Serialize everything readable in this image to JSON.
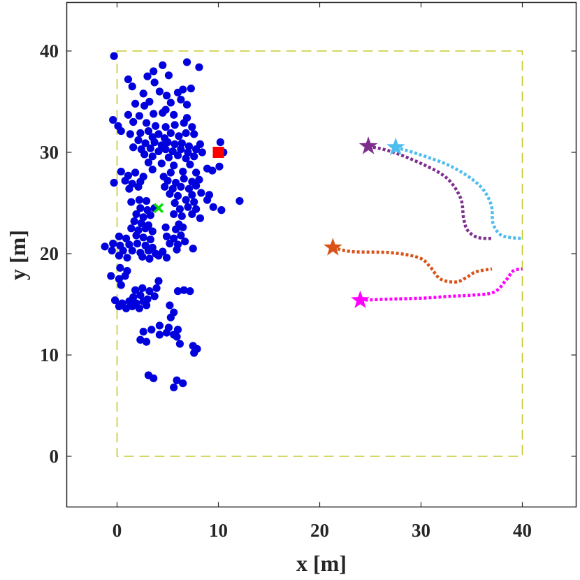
{
  "chart_data": {
    "type": "scatter",
    "xlabel": "x [m]",
    "ylabel": "y [m]",
    "xlim": [
      -5,
      45
    ],
    "ylim": [
      -5,
      45
    ],
    "xticks": [
      "0",
      "10",
      "20",
      "30",
      "40"
    ],
    "yticks": [
      "0",
      "10",
      "20",
      "30",
      "40"
    ],
    "grid": false,
    "boundary": {
      "x": [
        0,
        40
      ],
      "y": [
        0,
        40
      ],
      "color": "#c8c830",
      "style": "dashed"
    },
    "scatter_color": "#0000dd",
    "points": [
      [
        -0.3,
        39.5
      ],
      [
        3.6,
        38.0
      ],
      [
        4.5,
        38.6
      ],
      [
        6.9,
        38.9
      ],
      [
        8.1,
        38.4
      ],
      [
        3.0,
        37.5
      ],
      [
        5.1,
        37.6
      ],
      [
        1.1,
        37.2
      ],
      [
        3.7,
        36.9
      ],
      [
        1.5,
        36.5
      ],
      [
        4.2,
        36.0
      ],
      [
        2.6,
        35.8
      ],
      [
        6.5,
        36.2
      ],
      [
        7.3,
        36.3
      ],
      [
        4.9,
        35.6
      ],
      [
        6.0,
        35.9
      ],
      [
        1.8,
        34.8
      ],
      [
        2.7,
        34.6
      ],
      [
        3.2,
        35.0
      ],
      [
        5.3,
        34.9
      ],
      [
        6.3,
        35.2
      ],
      [
        4.8,
        34.2
      ],
      [
        6.9,
        34.7
      ],
      [
        1.1,
        33.7
      ],
      [
        2.2,
        33.6
      ],
      [
        3.6,
        33.8
      ],
      [
        4.5,
        33.9
      ],
      [
        5.6,
        33.7
      ],
      [
        6.9,
        33.4
      ],
      [
        -0.4,
        33.2
      ],
      [
        0.1,
        32.6
      ],
      [
        1.6,
        33.0
      ],
      [
        2.9,
        32.9
      ],
      [
        3.8,
        32.6
      ],
      [
        4.8,
        32.5
      ],
      [
        5.7,
        32.7
      ],
      [
        6.6,
        32.9
      ],
      [
        7.4,
        32.5
      ],
      [
        0.4,
        32.1
      ],
      [
        1.3,
        31.8
      ],
      [
        2.3,
        31.9
      ],
      [
        3.1,
        32.1
      ],
      [
        3.5,
        31.5
      ],
      [
        4.1,
        31.8
      ],
      [
        4.7,
        31.4
      ],
      [
        5.3,
        31.9
      ],
      [
        6.1,
        31.6
      ],
      [
        6.8,
        31.9
      ],
      [
        7.6,
        31.8
      ],
      [
        2.1,
        31.2
      ],
      [
        2.8,
        30.9
      ],
      [
        3.7,
        31.0
      ],
      [
        4.4,
        30.7
      ],
      [
        5.0,
        31.0
      ],
      [
        5.7,
        30.8
      ],
      [
        6.4,
        30.9
      ],
      [
        7.1,
        30.6
      ],
      [
        8.2,
        30.8
      ],
      [
        1.6,
        30.5
      ],
      [
        2.4,
        30.3
      ],
      [
        3.3,
        30.4
      ],
      [
        4.1,
        30.1
      ],
      [
        4.8,
        30.3
      ],
      [
        5.5,
        30.1
      ],
      [
        6.3,
        30.3
      ],
      [
        7.0,
        30.0
      ],
      [
        7.8,
        30.3
      ],
      [
        8.4,
        30.0
      ],
      [
        2.7,
        29.8
      ],
      [
        3.5,
        29.6
      ],
      [
        5.1,
        29.5
      ],
      [
        6.0,
        29.7
      ],
      [
        6.8,
        29.4
      ],
      [
        7.6,
        29.6
      ],
      [
        3.1,
        29.0
      ],
      [
        4.4,
        28.9
      ],
      [
        5.6,
        28.7
      ],
      [
        7.2,
        28.8
      ],
      [
        10.5,
        30.0
      ],
      [
        10.2,
        31.0
      ],
      [
        8.9,
        28.4
      ],
      [
        10.1,
        28.6
      ],
      [
        3.5,
        28.3
      ],
      [
        6.5,
        28.1
      ],
      [
        7.8,
        28.0
      ],
      [
        9.4,
        28.2
      ],
      [
        5.3,
        28.0
      ],
      [
        4.6,
        27.6
      ],
      [
        0.4,
        28.1
      ],
      [
        1.1,
        27.7
      ],
      [
        1.8,
        28.0
      ],
      [
        2.6,
        27.6
      ],
      [
        0.8,
        27.2
      ],
      [
        1.5,
        26.9
      ],
      [
        2.3,
        27.1
      ],
      [
        -0.3,
        27.0
      ],
      [
        5.0,
        27.2
      ],
      [
        5.8,
        27.0
      ],
      [
        6.6,
        27.4
      ],
      [
        7.4,
        27.1
      ],
      [
        8.1,
        27.3
      ],
      [
        4.7,
        26.6
      ],
      [
        5.5,
        26.4
      ],
      [
        6.3,
        26.6
      ],
      [
        7.1,
        26.4
      ],
      [
        7.8,
        26.7
      ],
      [
        1.2,
        26.4
      ],
      [
        2.1,
        26.6
      ],
      [
        5.2,
        25.9
      ],
      [
        6.0,
        25.7
      ],
      [
        7.4,
        25.8
      ],
      [
        8.3,
        26.0
      ],
      [
        9.1,
        25.8
      ],
      [
        6.8,
        25.3
      ],
      [
        7.6,
        25.1
      ],
      [
        8.9,
        25.3
      ],
      [
        12.1,
        25.2
      ],
      [
        1.4,
        25.1
      ],
      [
        2.2,
        25.3
      ],
      [
        2.9,
        25.2
      ],
      [
        5.7,
        25.0
      ],
      [
        2.3,
        24.5
      ],
      [
        3.0,
        24.3
      ],
      [
        3.7,
        24.5
      ],
      [
        6.2,
        24.4
      ],
      [
        7.0,
        24.6
      ],
      [
        7.8,
        24.4
      ],
      [
        9.5,
        24.6
      ],
      [
        10.3,
        24.3
      ],
      [
        1.9,
        23.9
      ],
      [
        2.6,
        23.6
      ],
      [
        3.3,
        23.8
      ],
      [
        5.6,
        23.9
      ],
      [
        6.4,
        23.7
      ],
      [
        7.4,
        23.9
      ],
      [
        8.2,
        23.5
      ],
      [
        1.7,
        23.2
      ],
      [
        2.4,
        23.0
      ],
      [
        3.1,
        22.8
      ],
      [
        6.1,
        22.9
      ],
      [
        1.4,
        22.5
      ],
      [
        2.1,
        22.3
      ],
      [
        2.8,
        22.5
      ],
      [
        3.5,
        22.2
      ],
      [
        4.8,
        22.6
      ],
      [
        5.8,
        22.4
      ],
      [
        6.5,
        22.6
      ],
      [
        0.2,
        21.7
      ],
      [
        0.9,
        21.5
      ],
      [
        1.9,
        21.8
      ],
      [
        2.6,
        21.6
      ],
      [
        3.3,
        21.4
      ],
      [
        4.9,
        21.7
      ],
      [
        5.6,
        21.5
      ],
      [
        6.3,
        21.8
      ],
      [
        -0.4,
        21.0
      ],
      [
        0.3,
        20.8
      ],
      [
        1.2,
        20.9
      ],
      [
        2.0,
        21.0
      ],
      [
        2.8,
        20.8
      ],
      [
        3.5,
        20.6
      ],
      [
        5.2,
        21.0
      ],
      [
        6.0,
        20.9
      ],
      [
        6.7,
        21.2
      ],
      [
        -1.2,
        20.7
      ],
      [
        -0.5,
        20.3
      ],
      [
        0.6,
        20.3
      ],
      [
        1.5,
        20.3
      ],
      [
        2.3,
        20.1
      ],
      [
        3.1,
        20.3
      ],
      [
        3.8,
        20.0
      ],
      [
        4.5,
        20.2
      ],
      [
        5.9,
        20.4
      ],
      [
        7.5,
        20.5
      ],
      [
        0.2,
        19.8
      ],
      [
        1.0,
        19.6
      ],
      [
        2.5,
        19.7
      ],
      [
        3.2,
        19.5
      ],
      [
        4.1,
        19.8
      ],
      [
        4.9,
        19.6
      ],
      [
        0.3,
        18.6
      ],
      [
        1.0,
        18.3
      ],
      [
        -0.6,
        17.8
      ],
      [
        0.2,
        17.5
      ],
      [
        0.8,
        17.8
      ],
      [
        0.4,
        16.9
      ],
      [
        1.8,
        16.4
      ],
      [
        2.5,
        16.6
      ],
      [
        3.2,
        16.3
      ],
      [
        3.9,
        16.6
      ],
      [
        4.1,
        17.3
      ],
      [
        6.0,
        16.3
      ],
      [
        6.6,
        16.4
      ],
      [
        7.2,
        16.3
      ],
      [
        1.6,
        15.7
      ],
      [
        2.3,
        15.9
      ],
      [
        3.0,
        15.5
      ],
      [
        3.7,
        15.8
      ],
      [
        -0.2,
        15.4
      ],
      [
        0.5,
        15.1
      ],
      [
        1.2,
        15.3
      ],
      [
        1.9,
        15.1
      ],
      [
        2.6,
        15.3
      ],
      [
        0.2,
        14.8
      ],
      [
        0.9,
        14.6
      ],
      [
        1.5,
        14.8
      ],
      [
        2.2,
        14.6
      ],
      [
        2.9,
        14.9
      ],
      [
        5.2,
        14.9
      ],
      [
        5.6,
        14.2
      ],
      [
        5.3,
        13.7
      ],
      [
        4.2,
        12.9
      ],
      [
        5.1,
        12.7
      ],
      [
        2.6,
        12.3
      ],
      [
        3.4,
        12.5
      ],
      [
        4.2,
        12.0
      ],
      [
        4.9,
        12.2
      ],
      [
        5.6,
        12.0
      ],
      [
        6.0,
        12.5
      ],
      [
        2.3,
        11.5
      ],
      [
        2.9,
        11.3
      ],
      [
        6.2,
        11.1
      ],
      [
        5.9,
        11.8
      ],
      [
        7.5,
        10.9
      ],
      [
        7.9,
        10.6
      ],
      [
        7.6,
        10.2
      ],
      [
        3.1,
        8.0
      ],
      [
        3.6,
        7.7
      ],
      [
        5.9,
        7.5
      ],
      [
        6.5,
        7.2
      ],
      [
        5.6,
        6.8
      ]
    ],
    "markers": [
      {
        "name": "start",
        "shape": "cross",
        "x": 4.1,
        "y": 24.5,
        "color": "#00e000"
      },
      {
        "name": "goal",
        "shape": "square",
        "x": 10.0,
        "y": 30.0,
        "color": "#ff0000"
      }
    ],
    "series": [
      {
        "color": "#7e2f8e",
        "points": [
          [
            24.8,
            30.6
          ],
          [
            27.0,
            30.1
          ],
          [
            30.0,
            28.9
          ],
          [
            32.5,
            27.5
          ],
          [
            33.9,
            25.5
          ],
          [
            34.2,
            23.5
          ],
          [
            34.6,
            22.3
          ],
          [
            35.6,
            21.6
          ],
          [
            37.0,
            21.5
          ]
        ]
      },
      {
        "color": "#4dbeee",
        "points": [
          [
            27.5,
            30.5
          ],
          [
            29.8,
            29.8
          ],
          [
            33.0,
            28.6
          ],
          [
            35.7,
            26.8
          ],
          [
            36.9,
            24.9
          ],
          [
            37.1,
            23.0
          ],
          [
            37.8,
            21.9
          ],
          [
            38.8,
            21.6
          ],
          [
            40.0,
            21.5
          ]
        ]
      },
      {
        "color": "#d95319",
        "points": [
          [
            21.3,
            20.6
          ],
          [
            23.2,
            20.2
          ],
          [
            27.0,
            20.1
          ],
          [
            29.8,
            19.6
          ],
          [
            30.9,
            18.7
          ],
          [
            31.9,
            17.5
          ],
          [
            33.4,
            17.2
          ],
          [
            34.4,
            17.6
          ],
          [
            35.4,
            18.2
          ],
          [
            37.0,
            18.5
          ]
        ]
      },
      {
        "color": "#ff00ff",
        "points": [
          [
            24.0,
            15.4
          ],
          [
            26.5,
            15.5
          ],
          [
            30.0,
            15.6
          ],
          [
            33.0,
            15.8
          ],
          [
            35.0,
            15.9
          ],
          [
            37.2,
            16.2
          ],
          [
            38.4,
            17.4
          ],
          [
            39.1,
            18.3
          ],
          [
            40.0,
            18.5
          ]
        ]
      }
    ]
  }
}
